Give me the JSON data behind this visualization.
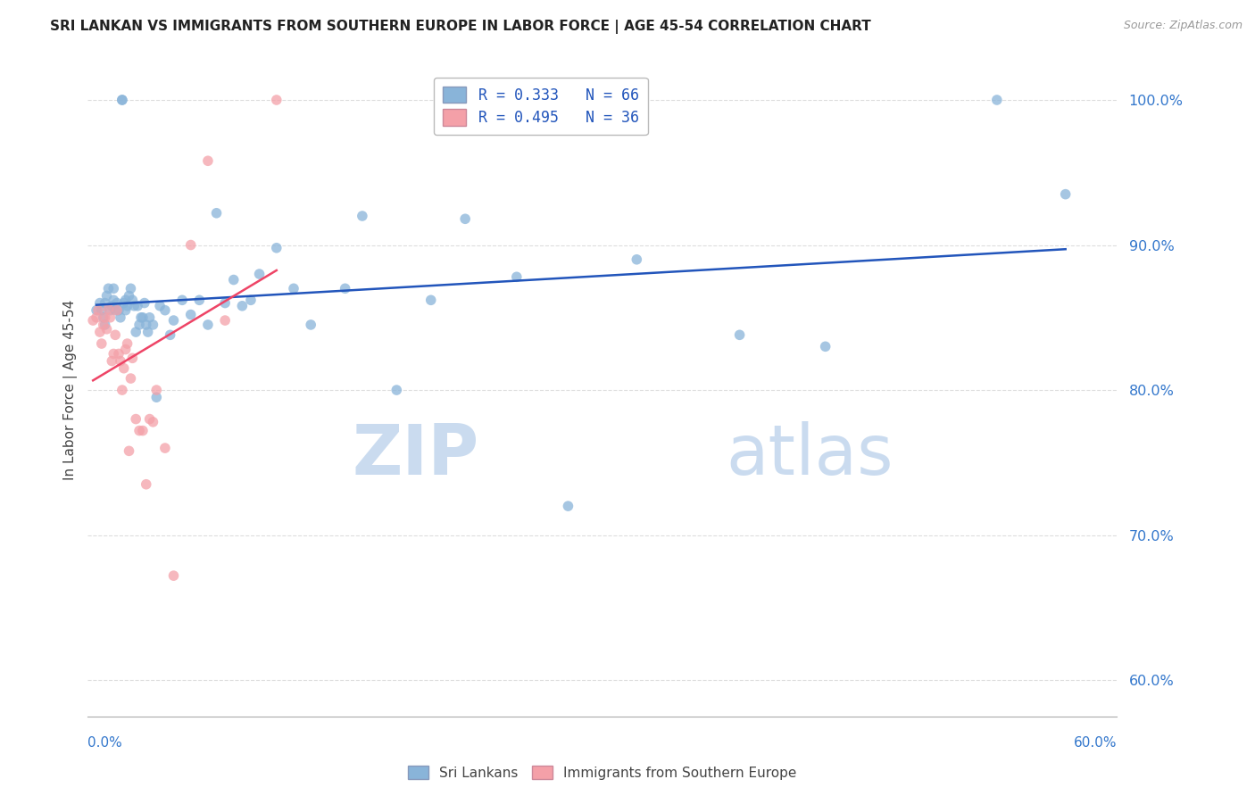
{
  "title": "SRI LANKAN VS IMMIGRANTS FROM SOUTHERN EUROPE IN LABOR FORCE | AGE 45-54 CORRELATION CHART",
  "source": "Source: ZipAtlas.com",
  "ylabel": "In Labor Force | Age 45-54",
  "x_range": [
    0.0,
    0.6
  ],
  "y_range": [
    0.575,
    1.025
  ],
  "y_ticks": [
    0.6,
    0.7,
    0.8,
    0.9,
    1.0
  ],
  "y_tick_labels": [
    "60.0%",
    "70.0%",
    "80.0%",
    "90.0%",
    "100.0%"
  ],
  "blue_color": "#89B4D9",
  "pink_color": "#F4A0A8",
  "trendline_blue": "#2255BB",
  "trendline_pink": "#EE4466",
  "legend_label_blue": "R = 0.333   N = 66",
  "legend_label_pink": "R = 0.495   N = 36",
  "legend_label_sri": "Sri Lankans",
  "legend_label_immig": "Immigrants from Southern Europe",
  "blue_scatter_x": [
    0.005,
    0.007,
    0.008,
    0.009,
    0.01,
    0.01,
    0.011,
    0.012,
    0.013,
    0.014,
    0.015,
    0.015,
    0.016,
    0.017,
    0.018,
    0.019,
    0.02,
    0.02,
    0.021,
    0.022,
    0.022,
    0.023,
    0.024,
    0.025,
    0.026,
    0.027,
    0.028,
    0.029,
    0.03,
    0.031,
    0.032,
    0.033,
    0.034,
    0.035,
    0.036,
    0.038,
    0.04,
    0.042,
    0.045,
    0.048,
    0.05,
    0.055,
    0.06,
    0.065,
    0.07,
    0.075,
    0.08,
    0.085,
    0.09,
    0.095,
    0.1,
    0.11,
    0.12,
    0.13,
    0.15,
    0.16,
    0.18,
    0.2,
    0.22,
    0.25,
    0.28,
    0.32,
    0.38,
    0.43,
    0.53,
    0.57
  ],
  "blue_scatter_y": [
    0.855,
    0.86,
    0.855,
    0.85,
    0.845,
    0.86,
    0.865,
    0.87,
    0.855,
    0.858,
    0.862,
    0.87,
    0.855,
    0.86,
    0.855,
    0.85,
    1.0,
    1.0,
    0.86,
    0.862,
    0.855,
    0.858,
    0.865,
    0.87,
    0.862,
    0.858,
    0.84,
    0.858,
    0.845,
    0.85,
    0.85,
    0.86,
    0.845,
    0.84,
    0.85,
    0.845,
    0.795,
    0.858,
    0.855,
    0.838,
    0.848,
    0.862,
    0.852,
    0.862,
    0.845,
    0.922,
    0.86,
    0.876,
    0.858,
    0.862,
    0.88,
    0.898,
    0.87,
    0.845,
    0.87,
    0.92,
    0.8,
    0.862,
    0.918,
    0.878,
    0.72,
    0.89,
    0.838,
    0.83,
    1.0,
    0.935
  ],
  "pink_scatter_x": [
    0.003,
    0.005,
    0.006,
    0.007,
    0.008,
    0.009,
    0.01,
    0.011,
    0.012,
    0.013,
    0.014,
    0.015,
    0.016,
    0.017,
    0.018,
    0.019,
    0.02,
    0.021,
    0.022,
    0.023,
    0.024,
    0.025,
    0.026,
    0.028,
    0.03,
    0.032,
    0.034,
    0.036,
    0.038,
    0.04,
    0.045,
    0.05,
    0.06,
    0.07,
    0.08,
    0.11
  ],
  "pink_scatter_y": [
    0.848,
    0.85,
    0.855,
    0.84,
    0.832,
    0.845,
    0.85,
    0.842,
    0.856,
    0.85,
    0.82,
    0.825,
    0.838,
    0.855,
    0.825,
    0.82,
    0.8,
    0.815,
    0.828,
    0.832,
    0.758,
    0.808,
    0.822,
    0.78,
    0.772,
    0.772,
    0.735,
    0.78,
    0.778,
    0.8,
    0.76,
    0.672,
    0.9,
    0.958,
    0.848,
    1.0
  ],
  "watermark_zip_color": "#C5D8EE",
  "watermark_atlas_color": "#C5D8EE",
  "grid_color": "#DDDDDD",
  "axis_color": "#AAAAAA"
}
